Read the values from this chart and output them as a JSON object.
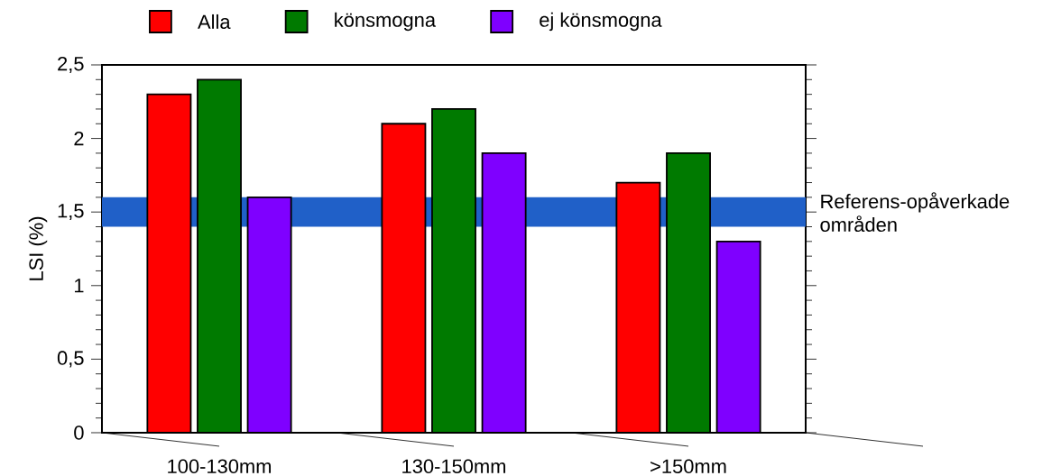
{
  "chart_data": {
    "type": "bar",
    "categories": [
      "100-130mm",
      "130-150mm",
      ">150mm"
    ],
    "series": [
      {
        "name": "Alla",
        "color": "#ff0000",
        "values": [
          2.3,
          2.1,
          1.7
        ]
      },
      {
        "name": "könsmogna",
        "color": "#007a00",
        "values": [
          2.4,
          2.2,
          1.9
        ]
      },
      {
        "name": "ej könsmogna",
        "color": "#7f00ff",
        "values": [
          1.6,
          1.9,
          1.3
        ]
      }
    ],
    "ylabel": "LSI (%)",
    "ylim": [
      0,
      2.5
    ],
    "yticks": [
      0,
      {
        "value": 0.5,
        "label": "0,5"
      },
      1,
      {
        "value": 1.5,
        "label": "1,5"
      },
      2,
      {
        "value": 2.5,
        "label": "2,5"
      }
    ],
    "bands": [
      {
        "axis": "y",
        "from": 1.4,
        "to": 1.6,
        "label": "Referens-opåverkade områden",
        "color": "#2060c8"
      }
    ],
    "legend": "top",
    "grid": false
  }
}
